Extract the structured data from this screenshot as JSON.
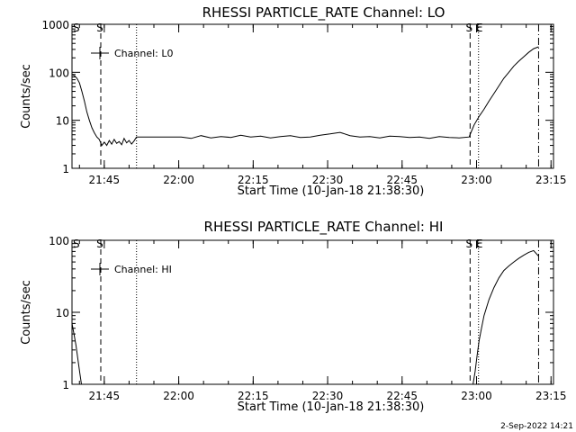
{
  "footer": {
    "date": "2-Sep-2022 14:21"
  },
  "chart_data": [
    {
      "type": "line",
      "title": "RHESSI PARTICLE_RATE Channel: LO",
      "xlabel": "Start Time (10-Jan-18 21:38:30)",
      "ylabel": "Counts/sec",
      "yscale": "log",
      "ylim": [
        1,
        1000
      ],
      "xlim_min": [
        0,
        97
      ],
      "x_ticks": [
        {
          "min": 6.5,
          "label": "21:45"
        },
        {
          "min": 21.5,
          "label": "22:00"
        },
        {
          "min": 36.5,
          "label": "22:15"
        },
        {
          "min": 51.5,
          "label": "22:30"
        },
        {
          "min": 66.5,
          "label": "22:45"
        },
        {
          "min": 81.5,
          "label": "23:00"
        },
        {
          "min": 96.5,
          "label": "23:15"
        }
      ],
      "y_ticks": [
        {
          "value": 1,
          "label": "1"
        },
        {
          "value": 10,
          "label": "10"
        },
        {
          "value": 100,
          "label": "100"
        },
        {
          "value": 1000,
          "label": "1000"
        }
      ],
      "legend": {
        "label": "Channel: L0",
        "position": "top-left"
      },
      "markers": [
        {
          "min": 5.8,
          "style": "dashed",
          "label": "S"
        },
        {
          "min": 13.0,
          "style": "dotted",
          "label": ""
        },
        {
          "min": 80.2,
          "style": "dashed",
          "label": "S"
        },
        {
          "min": 81.9,
          "style": "dotted",
          "label": "E"
        },
        {
          "min": 94.0,
          "style": "dashdot",
          "label": ""
        }
      ],
      "corner_label": "S",
      "series": [
        {
          "name": "Channel: L0",
          "x": [
            0,
            0.5,
            1,
            1.5,
            2,
            2.5,
            3,
            3.5,
            4,
            4.5,
            5,
            5.5,
            6,
            6.5,
            7,
            7.5,
            8,
            8.5,
            9,
            9.5,
            10,
            10.5,
            11,
            11.5,
            12,
            12.5,
            13,
            14,
            16,
            18,
            20,
            22,
            24,
            26,
            28,
            30,
            32,
            34,
            36,
            38,
            40,
            42,
            44,
            46,
            48,
            50,
            52,
            54,
            56,
            58,
            60,
            62,
            64,
            66,
            68,
            70,
            72,
            74,
            76,
            78,
            80,
            80.5,
            81,
            82,
            83,
            84,
            85,
            86,
            87,
            88,
            89,
            90,
            91,
            92,
            93,
            94
          ],
          "y": [
            90,
            85,
            75,
            60,
            40,
            25,
            15,
            10,
            7,
            5.5,
            4.5,
            4,
            3,
            3.5,
            3,
            3.8,
            3.2,
            4,
            3.3,
            3.6,
            3.1,
            4.2,
            3.4,
            3.8,
            3.2,
            3.7,
            4.5,
            4.5,
            4.5,
            4.5,
            4.5,
            4.5,
            4.2,
            4.8,
            4.3,
            4.6,
            4.4,
            4.9,
            4.5,
            4.7,
            4.3,
            4.6,
            4.8,
            4.4,
            4.5,
            4.9,
            5.2,
            5.6,
            4.8,
            4.5,
            4.6,
            4.3,
            4.7,
            4.6,
            4.4,
            4.5,
            4.2,
            4.6,
            4.4,
            4.3,
            4.5,
            6,
            8,
            12,
            17,
            25,
            36,
            52,
            75,
            100,
            135,
            170,
            210,
            260,
            310,
            340
          ]
        }
      ]
    },
    {
      "type": "line",
      "title": "RHESSI PARTICLE_RATE Channel: HI",
      "xlabel": "Start Time (10-Jan-18 21:38:30)",
      "ylabel": "Counts/sec",
      "yscale": "log",
      "ylim": [
        1,
        100
      ],
      "xlim_min": [
        0,
        97
      ],
      "x_ticks": [
        {
          "min": 6.5,
          "label": "21:45"
        },
        {
          "min": 21.5,
          "label": "22:00"
        },
        {
          "min": 36.5,
          "label": "22:15"
        },
        {
          "min": 51.5,
          "label": "22:30"
        },
        {
          "min": 66.5,
          "label": "22:45"
        },
        {
          "min": 81.5,
          "label": "23:00"
        },
        {
          "min": 96.5,
          "label": "23:15"
        }
      ],
      "y_ticks": [
        {
          "value": 1,
          "label": "1"
        },
        {
          "value": 10,
          "label": "10"
        },
        {
          "value": 100,
          "label": "100"
        }
      ],
      "legend": {
        "label": "Channel: HI",
        "position": "top-left"
      },
      "markers": [
        {
          "min": 5.8,
          "style": "dashed",
          "label": "S"
        },
        {
          "min": 13.0,
          "style": "dotted",
          "label": ""
        },
        {
          "min": 80.2,
          "style": "dashed",
          "label": "S"
        },
        {
          "min": 81.9,
          "style": "dotted",
          "label": "E"
        },
        {
          "min": 94.0,
          "style": "dashdot",
          "label": ""
        }
      ],
      "corner_label": "S",
      "series": [
        {
          "name": "Channel: HI",
          "x": [
            0,
            0.4,
            0.8,
            1.2,
            1.6,
            1.9,
            80.8,
            81.2,
            81.6,
            82,
            82.5,
            83,
            84,
            85,
            86,
            87,
            88,
            89,
            90,
            91,
            92,
            93,
            94
          ],
          "y": [
            7,
            5,
            3.5,
            2.2,
            1.4,
            1.0,
            1.0,
            1.5,
            2.5,
            4,
            6,
            9,
            15,
            22,
            30,
            38,
            44,
            50,
            56,
            62,
            68,
            72,
            60
          ]
        }
      ]
    }
  ]
}
